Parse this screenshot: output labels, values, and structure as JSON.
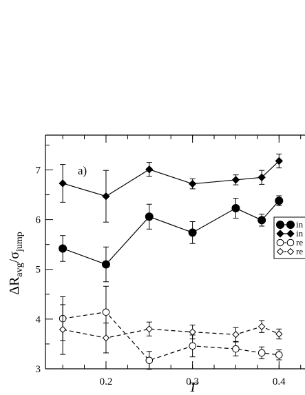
{
  "chart_data": {
    "type": "line",
    "panel_label": "a)",
    "xlabel": "T",
    "ylabel_main": "ΔR",
    "ylabel_sub1": "avg",
    "ylabel_over": "/σ",
    "ylabel_sub2": "jump",
    "xlim": [
      0.13,
      0.43
    ],
    "ylim": [
      3,
      7.7
    ],
    "x_ticks": [
      0.2,
      0.3,
      0.4
    ],
    "x_tick_labels": [
      "0.2",
      "0.3",
      "0.4"
    ],
    "y_ticks": [
      3,
      4,
      5,
      6,
      7
    ],
    "y_tick_labels": [
      "3",
      "4",
      "5",
      "6",
      "7"
    ],
    "legend_position": "right",
    "series": [
      {
        "name": "in",
        "marker": "circle-filled",
        "line": "solid",
        "x": [
          0.15,
          0.2,
          0.25,
          0.3,
          0.35,
          0.38,
          0.4
        ],
        "y": [
          5.42,
          5.1,
          6.06,
          5.74,
          6.23,
          5.99,
          6.38
        ],
        "err": [
          0.26,
          0.35,
          0.25,
          0.22,
          0.2,
          0.12,
          0.1
        ]
      },
      {
        "name": "in",
        "marker": "diamond-filled",
        "line": "solid",
        "x": [
          0.15,
          0.2,
          0.25,
          0.3,
          0.35,
          0.38,
          0.4
        ],
        "y": [
          6.73,
          6.47,
          7.01,
          6.72,
          6.8,
          6.85,
          7.18
        ],
        "err": [
          0.38,
          0.52,
          0.14,
          0.1,
          0.1,
          0.14,
          0.14
        ]
      },
      {
        "name": "re",
        "marker": "circle-open",
        "line": "dashed",
        "x": [
          0.15,
          0.2,
          0.25,
          0.3,
          0.35,
          0.38,
          0.4
        ],
        "y": [
          4.01,
          4.14,
          3.17,
          3.46,
          3.4,
          3.32,
          3.28
        ],
        "err": [
          0.44,
          0.52,
          0.18,
          0.22,
          0.14,
          0.12,
          0.1
        ]
      },
      {
        "name": "re",
        "marker": "diamond-open",
        "line": "dashed",
        "x": [
          0.15,
          0.2,
          0.25,
          0.3,
          0.35,
          0.38,
          0.4
        ],
        "y": [
          3.79,
          3.62,
          3.8,
          3.74,
          3.69,
          3.85,
          3.7
        ],
        "err": [
          0.5,
          0.3,
          0.14,
          0.14,
          0.14,
          0.12,
          0.1
        ]
      }
    ]
  }
}
